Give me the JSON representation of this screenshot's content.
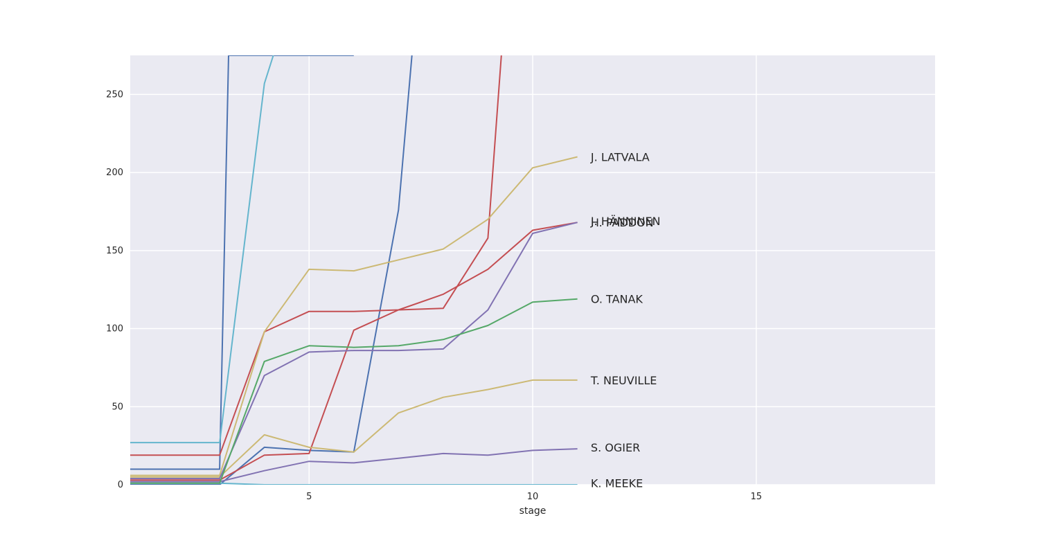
{
  "chart_data": {
    "type": "line",
    "xlabel": "stage",
    "ylabel": "",
    "xlim": [
      1,
      19
    ],
    "ylim": [
      0,
      275
    ],
    "xticks": [
      5,
      10,
      15
    ],
    "yticks": [
      0,
      50,
      100,
      150,
      200,
      250
    ],
    "grid": true,
    "series": [
      {
        "color": "#4c72b0",
        "x": [
          1,
          3,
          3.2,
          4,
          5,
          6
        ],
        "y": [
          10,
          10,
          275,
          275,
          275,
          275
        ]
      },
      {
        "color": "#4c72b0",
        "x": [
          1,
          3,
          4,
          5,
          6,
          7,
          7.3
        ],
        "y": [
          0,
          0,
          24,
          22,
          21,
          176,
          275
        ]
      },
      {
        "color": "#64b5cd",
        "x": [
          1,
          3,
          4,
          4.2
        ],
        "y": [
          27,
          27,
          257,
          275
        ]
      },
      {
        "color": "#64b5cd",
        "x": [
          1,
          3,
          4,
          5,
          6,
          7,
          8,
          9,
          10,
          11
        ],
        "y": [
          1,
          1,
          0,
          0,
          0,
          0,
          0,
          0,
          0,
          0
        ]
      },
      {
        "color": "#c44e52",
        "x": [
          1,
          3,
          4,
          5,
          6,
          7,
          8,
          9,
          9.3
        ],
        "y": [
          3,
          3,
          19,
          20,
          99,
          112,
          113,
          158,
          275
        ]
      },
      {
        "color": "#c44e52",
        "x": [
          1,
          3,
          4,
          5,
          6,
          7,
          8,
          9,
          10,
          11
        ],
        "y": [
          19,
          19,
          98,
          111,
          111,
          112,
          122,
          138,
          163,
          168
        ]
      },
      {
        "color": "#ccb974",
        "x": [
          1,
          3,
          4,
          5,
          6,
          7,
          8,
          9,
          10,
          11
        ],
        "y": [
          6,
          6,
          98,
          138,
          137,
          144,
          151,
          170,
          203,
          210
        ]
      },
      {
        "color": "#ccb974",
        "x": [
          1,
          3,
          4,
          5,
          6,
          7,
          8,
          9,
          10,
          11
        ],
        "y": [
          5,
          5,
          32,
          24,
          21,
          46,
          56,
          61,
          67,
          67
        ]
      },
      {
        "color": "#8172b2",
        "x": [
          1,
          3,
          4,
          5,
          6,
          7,
          8,
          9,
          10,
          11
        ],
        "y": [
          4,
          4,
          70,
          85,
          86,
          86,
          87,
          112,
          161,
          168
        ]
      },
      {
        "color": "#8172b2",
        "x": [
          1,
          3,
          4,
          5,
          6,
          7,
          8,
          9,
          10,
          11
        ],
        "y": [
          2,
          2,
          9,
          15,
          14,
          17,
          20,
          19,
          22,
          23
        ]
      },
      {
        "color": "#55a868",
        "x": [
          1,
          3,
          4,
          5,
          6,
          7,
          8,
          9,
          10,
          11
        ],
        "y": [
          1,
          1,
          79,
          89,
          88,
          89,
          93,
          102,
          117,
          119
        ]
      }
    ],
    "annotations": [
      {
        "text": "J. LATVALA",
        "x": 11.3,
        "y": 210
      },
      {
        "text": "H. PADDON",
        "x": 11.3,
        "y": 168
      },
      {
        "text": "J. HÄNNINEN",
        "x": 11.3,
        "y": 169
      },
      {
        "text": "O. TANAK",
        "x": 11.3,
        "y": 119
      },
      {
        "text": "T. NEUVILLE",
        "x": 11.3,
        "y": 67
      },
      {
        "text": "S. OGIER",
        "x": 11.3,
        "y": 24
      },
      {
        "text": "K. MEEKE",
        "x": 11.3,
        "y": 1
      }
    ]
  }
}
